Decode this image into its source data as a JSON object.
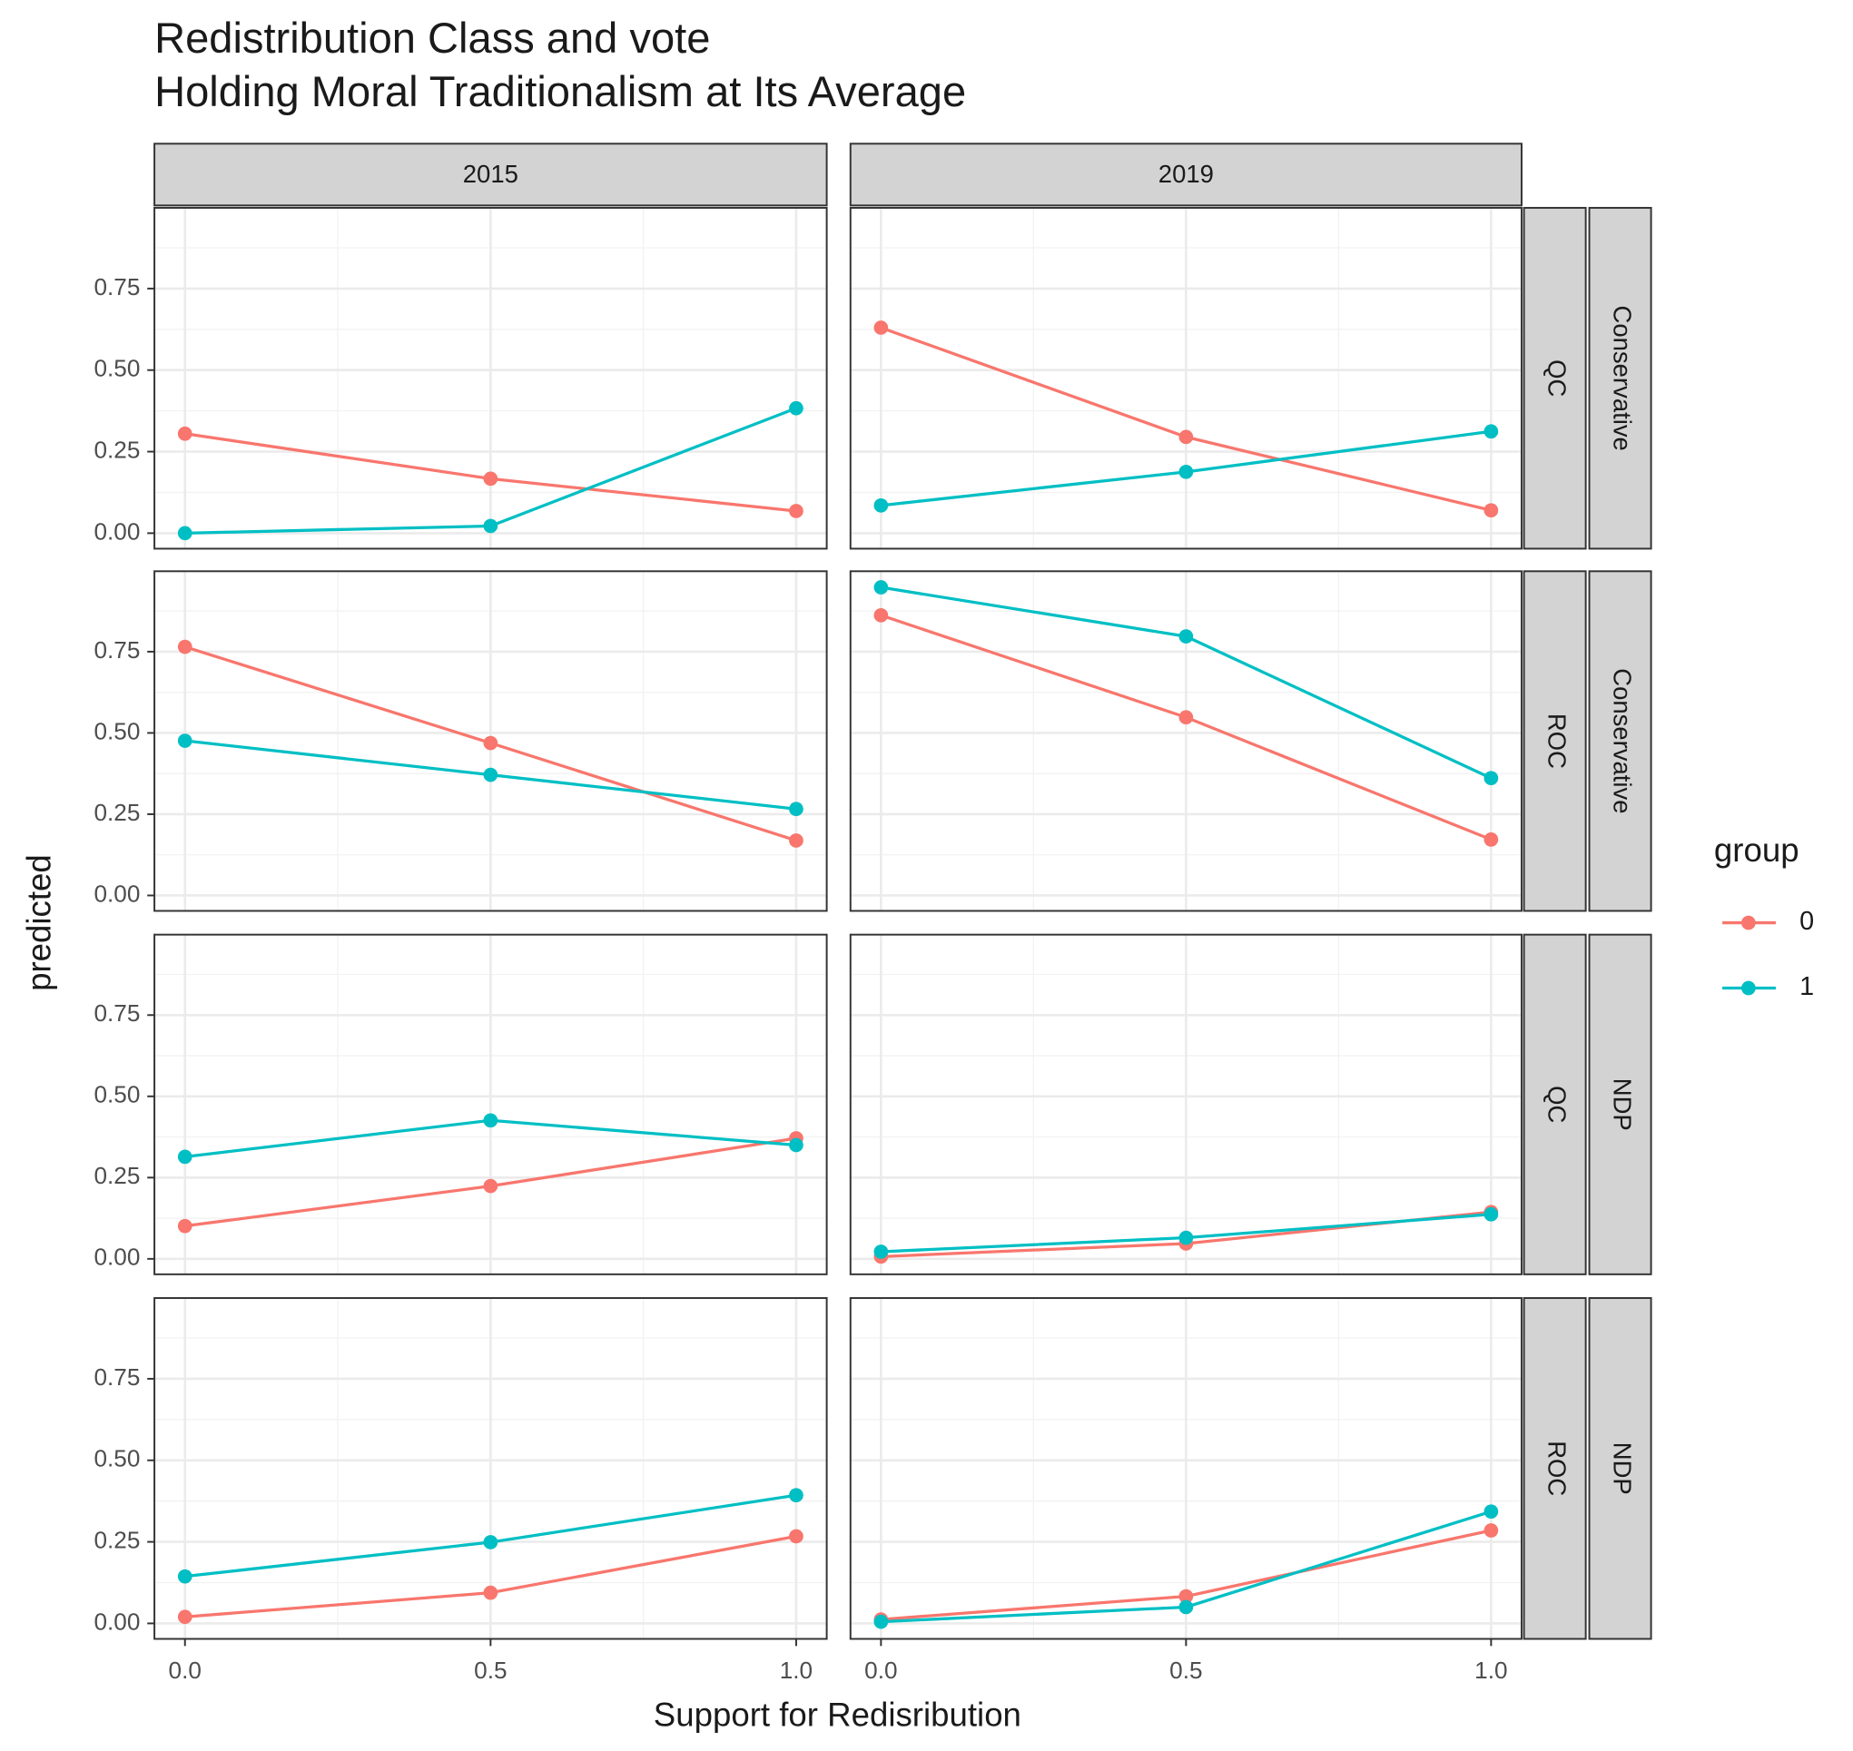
{
  "chart_data": {
    "type": "line",
    "title": "Redistribution Class and vote",
    "subtitle": "Holding Moral Traditionalism at Its Average",
    "x_label": "Support for Redisribution",
    "y_label": "predicted",
    "legend_title": "group",
    "series": [
      {
        "name": "0",
        "color": "#F8766D"
      },
      {
        "name": "1",
        "color": "#00BFC4"
      }
    ],
    "x": [
      0,
      0.5,
      1
    ],
    "xlim": [
      -0.05,
      1.05
    ],
    "xticks": [
      {
        "value": 0,
        "label": "0.0"
      },
      {
        "value": 0.5,
        "label": "0.5"
      },
      {
        "value": 1,
        "label": "1.0"
      }
    ],
    "xminor": [
      0.25,
      0.75
    ],
    "ylim": [
      -0.0475,
      0.9975
    ],
    "yticks": [
      {
        "value": 0,
        "label": "0.00"
      },
      {
        "value": 0.25,
        "label": "0.25"
      },
      {
        "value": 0.5,
        "label": "0.50"
      },
      {
        "value": 0.75,
        "label": "0.75"
      }
    ],
    "yminor": [
      0.125,
      0.375,
      0.625,
      0.875
    ],
    "grid": true,
    "columns": [
      "2015",
      "2019"
    ],
    "rows": [
      {
        "strips": [
          "QC",
          "Conservative"
        ],
        "panels": [
          [
            [
              0.305,
              0.167,
              0.068
            ],
            [
              0.0,
              0.022,
              0.383
            ]
          ],
          [
            [
              0.63,
              0.295,
              0.07
            ],
            [
              0.085,
              0.188,
              0.312
            ]
          ]
        ]
      },
      {
        "strips": [
          "ROC",
          "Conservative"
        ],
        "panels": [
          [
            [
              0.765,
              0.469,
              0.169
            ],
            [
              0.476,
              0.371,
              0.266
            ]
          ],
          [
            [
              0.862,
              0.548,
              0.172
            ],
            [
              0.948,
              0.797,
              0.361
            ]
          ]
        ]
      },
      {
        "strips": [
          "QC",
          "NDP"
        ],
        "panels": [
          [
            [
              0.101,
              0.224,
              0.371
            ],
            [
              0.314,
              0.426,
              0.35
            ]
          ],
          [
            [
              0.007,
              0.047,
              0.144
            ],
            [
              0.022,
              0.065,
              0.137
            ]
          ]
        ]
      },
      {
        "strips": [
          "ROC",
          "NDP"
        ],
        "panels": [
          [
            [
              0.02,
              0.094,
              0.267
            ],
            [
              0.144,
              0.249,
              0.393
            ]
          ],
          [
            [
              0.012,
              0.083,
              0.285
            ],
            [
              0.005,
              0.05,
              0.343
            ]
          ]
        ]
      }
    ]
  }
}
